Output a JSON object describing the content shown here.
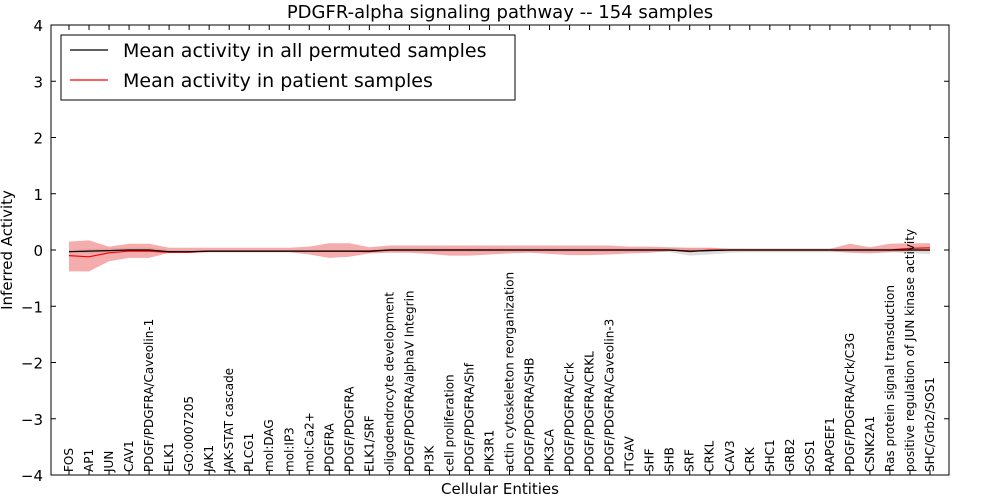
{
  "chart_data": {
    "type": "line",
    "title": "PDGFR-alpha signaling pathway -- 154 samples",
    "xlabel": "Cellular Entities",
    "ylabel": "Inferred Activity",
    "ylim": [
      -4,
      4
    ],
    "yticks": [
      4,
      3,
      2,
      1,
      0,
      -1,
      -2,
      -3,
      -4
    ],
    "ytick_labels": [
      "4",
      "3",
      "2",
      "1",
      "0",
      "−1",
      "−2",
      "−3",
      "−4"
    ],
    "grid": false,
    "legend_placement": "top-left",
    "colors": {
      "permuted": "#000000",
      "patient": "#ff0000",
      "patient_band": "#f08080",
      "permuted_band": "#bbbbbb"
    },
    "categories": [
      "FOS",
      "AP1",
      "JUN",
      "CAV1",
      "PDGF/PDGFRA/Caveolin-1",
      "ELK1",
      "GO:0007205",
      "JAK1",
      "JAK-STAT cascade",
      "PLCG1",
      "mol:DAG",
      "mol:IP3",
      "mol:Ca2+",
      "PDGFRA",
      "PDGF/PDGFRA",
      "ELK1/SRF",
      "oligodendrocyte development",
      "PDGF/PDGFRA/alphaV Integrin",
      "PI3K",
      "cell proliferation",
      "PDGF/PDGFRA/Shf",
      "PIK3R1",
      "actin cytoskeleton reorganization",
      "PDGF/PDGFRA/SHB",
      "PIK3CA",
      "PDGF/PDGFRA/Crk",
      "PDGF/PDGFRA/CRKL",
      "PDGF/PDGFRA/Caveolin-3",
      "ITGAV",
      "SHF",
      "SHB",
      "SRF",
      "CRKL",
      "CAV3",
      "CRK",
      "SHC1",
      "GRB2",
      "SOS1",
      "RAPGEF1",
      "PDGF/PDGFRA/Crk/C3G",
      "CSNK2A1",
      "Ras protein signal transduction",
      "positive regulation of JUN kinase activity",
      "SHC/Grb2/SOS1"
    ],
    "series": [
      {
        "name": "Mean activity in all permuted samples",
        "values": [
          -0.03,
          -0.02,
          -0.01,
          0.0,
          0.0,
          -0.03,
          -0.03,
          -0.02,
          -0.02,
          -0.02,
          -0.02,
          -0.02,
          -0.02,
          -0.02,
          -0.02,
          -0.02,
          0.0,
          0.0,
          0.0,
          0.0,
          0.0,
          0.0,
          0.0,
          0.0,
          0.0,
          0.0,
          0.0,
          0.0,
          0.0,
          0.0,
          0.0,
          -0.02,
          -0.01,
          0.0,
          0.0,
          0.0,
          0.0,
          0.0,
          0.0,
          0.0,
          0.0,
          0.0,
          0.0,
          0.0
        ],
        "lower": [
          -0.06,
          -0.06,
          -0.05,
          -0.04,
          -0.04,
          -0.05,
          -0.05,
          -0.04,
          -0.04,
          -0.04,
          -0.04,
          -0.04,
          -0.04,
          -0.04,
          -0.04,
          -0.04,
          -0.03,
          -0.03,
          -0.03,
          -0.03,
          -0.03,
          -0.03,
          -0.03,
          -0.03,
          -0.03,
          -0.03,
          -0.03,
          -0.03,
          -0.03,
          -0.03,
          -0.04,
          -0.1,
          -0.08,
          -0.05,
          -0.04,
          -0.04,
          -0.04,
          -0.04,
          -0.04,
          -0.04,
          -0.04,
          -0.04,
          -0.06,
          -0.07
        ],
        "upper": [
          0.0,
          0.02,
          0.03,
          0.04,
          0.04,
          0.0,
          0.0,
          0.0,
          0.0,
          0.0,
          0.0,
          0.0,
          0.0,
          0.0,
          0.0,
          0.0,
          0.03,
          0.03,
          0.03,
          0.03,
          0.03,
          0.03,
          0.03,
          0.03,
          0.03,
          0.03,
          0.03,
          0.03,
          0.03,
          0.03,
          0.03,
          0.04,
          0.04,
          0.03,
          0.03,
          0.03,
          0.03,
          0.03,
          0.03,
          0.03,
          0.03,
          0.03,
          0.04,
          0.05
        ]
      },
      {
        "name": "Mean activity in patient samples",
        "values": [
          -0.1,
          -0.12,
          -0.05,
          -0.02,
          -0.02,
          -0.04,
          -0.04,
          -0.02,
          -0.02,
          -0.02,
          -0.02,
          -0.02,
          -0.02,
          -0.02,
          -0.02,
          -0.03,
          0.0,
          0.0,
          0.0,
          0.0,
          0.0,
          0.0,
          0.0,
          0.0,
          0.0,
          0.0,
          0.0,
          0.0,
          0.0,
          0.0,
          0.0,
          -0.03,
          0.0,
          0.0,
          0.0,
          0.0,
          0.0,
          0.0,
          0.0,
          0.0,
          0.0,
          0.0,
          0.03,
          0.04
        ],
        "lower": [
          -0.38,
          -0.38,
          -0.2,
          -0.14,
          -0.14,
          -0.05,
          -0.05,
          -0.04,
          -0.04,
          -0.04,
          -0.04,
          -0.04,
          -0.08,
          -0.14,
          -0.12,
          -0.06,
          -0.05,
          -0.05,
          -0.07,
          -0.1,
          -0.1,
          -0.08,
          -0.06,
          -0.05,
          -0.07,
          -0.09,
          -0.09,
          -0.08,
          -0.06,
          -0.05,
          -0.02,
          -0.02,
          -0.02,
          -0.02,
          -0.02,
          -0.02,
          -0.02,
          -0.02,
          -0.02,
          -0.05,
          -0.06,
          -0.04,
          -0.02,
          -0.02
        ],
        "upper": [
          0.15,
          0.17,
          0.06,
          0.11,
          0.11,
          0.04,
          0.04,
          0.04,
          0.04,
          0.04,
          0.04,
          0.04,
          0.06,
          0.12,
          0.12,
          0.05,
          0.08,
          0.08,
          0.08,
          0.08,
          0.08,
          0.08,
          0.08,
          0.08,
          0.08,
          0.08,
          0.08,
          0.08,
          0.06,
          0.06,
          0.05,
          0.04,
          0.04,
          0.02,
          0.02,
          0.02,
          0.02,
          0.02,
          0.02,
          0.11,
          0.05,
          0.11,
          0.12,
          0.12
        ]
      }
    ]
  }
}
